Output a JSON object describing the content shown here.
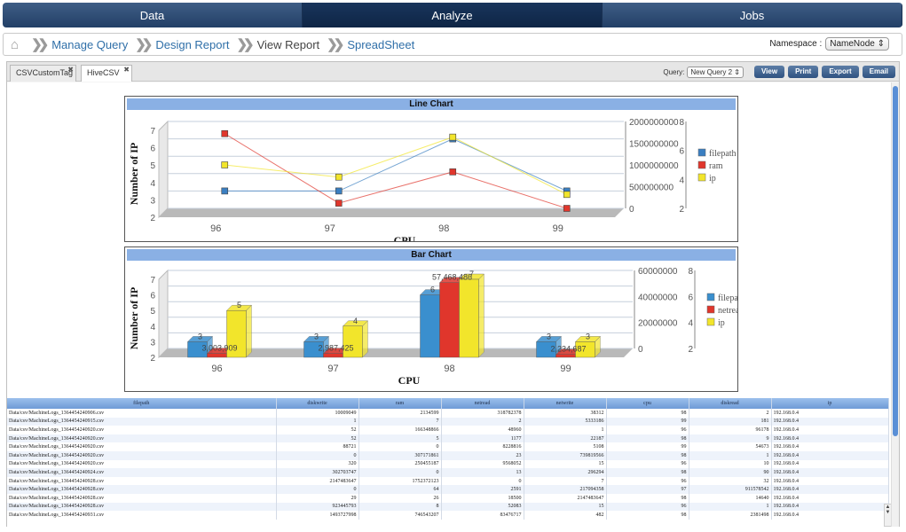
{
  "nav": {
    "tabs": [
      {
        "label": "Data"
      },
      {
        "label": "Analyze"
      },
      {
        "label": "Jobs"
      }
    ],
    "active": 1
  },
  "breadcrumb": {
    "items": [
      "Manage Query",
      "Design Report",
      "View Report",
      "SpreadSheet"
    ],
    "current": 2
  },
  "namespace": {
    "label": "Namespace :",
    "value": "NameNode"
  },
  "panel_tabs": [
    "CSVCustomTag",
    "HiveCSV"
  ],
  "query": {
    "label": "Query:",
    "value": "New Query 2"
  },
  "actions": [
    "View",
    "Print",
    "Export",
    "Email"
  ],
  "chart_data": [
    {
      "type": "line",
      "title": "Line Chart",
      "xlabel": "CPU",
      "ylabel": "Number of IP",
      "categories": [
        "96",
        "97",
        "98",
        "99"
      ],
      "ylim": [
        2,
        7
      ],
      "yticks": [
        "2",
        "3",
        "4",
        "5",
        "6",
        "7"
      ],
      "ylim_right": [
        0,
        2000000000
      ],
      "yticks_right": [
        "0",
        "500000000",
        "1000000000",
        "1500000000",
        "2000000000"
      ],
      "ylim_right2": [
        2,
        8
      ],
      "yticks_right2": [
        "2",
        "4",
        "6",
        "8"
      ],
      "legend_position": "right",
      "series": [
        {
          "name": "filepath",
          "color": "#3a7fc1",
          "values": [
            3,
            3,
            6,
            3
          ]
        },
        {
          "name": "ram",
          "color": "#e0362c",
          "values": [
            6.3,
            2.3,
            4.1,
            2
          ]
        },
        {
          "name": "ip",
          "color": "#f2e52b",
          "values": [
            4.5,
            3.8,
            6.1,
            2.8
          ]
        }
      ]
    },
    {
      "type": "bar",
      "title": "Bar Chart",
      "xlabel": "CPU",
      "ylabel": "Number of IP",
      "categories": [
        "96",
        "97",
        "98",
        "99"
      ],
      "ylim": [
        2,
        7
      ],
      "yticks": [
        "2",
        "3",
        "4",
        "5",
        "6",
        "7"
      ],
      "ylim_right": [
        0,
        60000000
      ],
      "yticks_right": [
        "0",
        "20000000",
        "40000000",
        "60000000"
      ],
      "ylim_right2": [
        2,
        8
      ],
      "yticks_right2": [
        "2",
        "4",
        "6",
        "8"
      ],
      "legend_position": "right",
      "series": [
        {
          "name": "filepath",
          "color": "#3a8fce",
          "values": [
            3,
            3,
            6,
            3
          ]
        },
        {
          "name": "netread",
          "color": "#e0362c",
          "values": [
            3003909,
            2987425,
            57468486,
            2234687
          ]
        },
        {
          "name": "ip",
          "color": "#f2e52b",
          "values": [
            5,
            4,
            7,
            3
          ]
        }
      ],
      "data_labels": [
        {
          "series": 0,
          "index": 0,
          "text": "3"
        },
        {
          "series": 1,
          "index": 0,
          "text": "3,003,909"
        },
        {
          "series": 2,
          "index": 0,
          "text": "5"
        },
        {
          "series": 0,
          "index": 1,
          "text": "3"
        },
        {
          "series": 1,
          "index": 1,
          "text": "2,987,425"
        },
        {
          "series": 2,
          "index": 1,
          "text": "4"
        },
        {
          "series": 0,
          "index": 2,
          "text": "6"
        },
        {
          "series": 1,
          "index": 2,
          "text": "57,468,486"
        },
        {
          "series": 2,
          "index": 2,
          "text": "7"
        },
        {
          "series": 0,
          "index": 3,
          "text": "3"
        },
        {
          "series": 1,
          "index": 3,
          "text": "2,234,687"
        },
        {
          "series": 2,
          "index": 3,
          "text": "3"
        }
      ]
    }
  ],
  "table": {
    "columns": [
      "filepath",
      "diskwrite",
      "ram",
      "netread",
      "netwrite",
      "cpu",
      "diskread",
      "ip"
    ],
    "rows": [
      [
        "Data/csv/MachineLogs_1364454240906.csv",
        "10009049",
        "2134599",
        "318782378",
        "38312",
        "98",
        "2",
        "192.168.0.4"
      ],
      [
        "Data/csv/MachineLogs_1364454240915.csv",
        "1",
        "7",
        "2",
        "5333186",
        "99",
        "181",
        "192.168.0.4"
      ],
      [
        "Data/csv/MachineLogs_1364454240920.csv",
        "52",
        "166348866",
        "48960",
        "1",
        "96",
        "96178",
        "192.168.0.4"
      ],
      [
        "Data/csv/MachineLogs_1364454240920.csv",
        "52",
        "5",
        "1177",
        "22187",
        "98",
        "9",
        "192.168.0.4"
      ],
      [
        "Data/csv/MachineLogs_1364454240920.csv",
        "88721",
        "0",
        "8228816",
        "5108",
        "99",
        "54673",
        "192.168.0.4"
      ],
      [
        "Data/csv/MachineLogs_1364454240920.csv",
        "0",
        "307171861",
        "23",
        "739819566",
        "98",
        "1",
        "192.168.0.4"
      ],
      [
        "Data/csv/MachineLogs_1364454240920.csv",
        "320",
        "250455187",
        "9568052",
        "15",
        "96",
        "10",
        "192.168.0.4"
      ],
      [
        "Data/csv/MachineLogs_1364454240924.csv",
        "302703747",
        "0",
        "13",
        "296294",
        "98",
        "90",
        "192.168.0.4"
      ],
      [
        "Data/csv/MachineLogs_1364454240928.csv",
        "2147483647",
        "1752372123",
        "0",
        "7",
        "96",
        "32",
        "192.168.0.4"
      ],
      [
        "Data/csv/MachineLogs_1364454240928.csv",
        "0",
        "64",
        "2591",
        "217094358",
        "97",
        "911578542",
        "192.168.0.4"
      ],
      [
        "Data/csv/MachineLogs_1364454240928.csv",
        "29",
        "26",
        "18500",
        "2147483647",
        "98",
        "14640",
        "192.168.0.4"
      ],
      [
        "Data/csv/MachineLogs_1364454240928.csv",
        "923445793",
        "8",
        "52083",
        "15",
        "96",
        "1",
        "192.168.0.4"
      ],
      [
        "Data/csv/MachineLogs_1364454240931.csv",
        "1493727998",
        "746543207",
        "83476717",
        "482",
        "98",
        "2381498",
        "192.168.0.4"
      ]
    ]
  }
}
